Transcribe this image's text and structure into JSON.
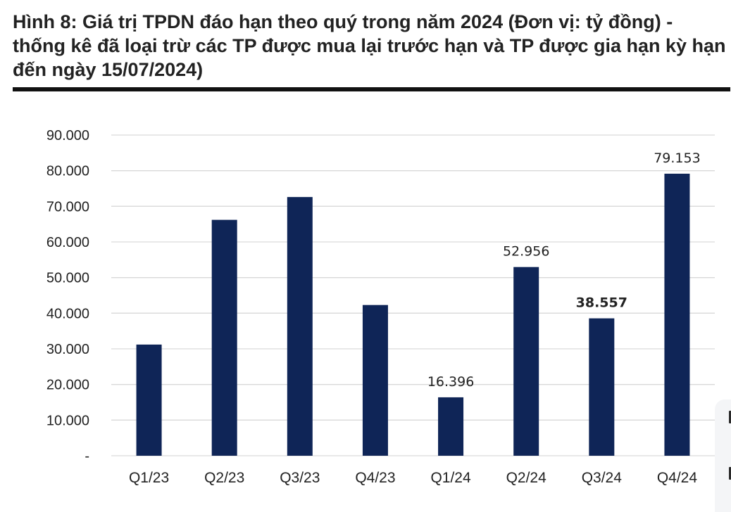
{
  "title": "Hình 8: Giá trị TPDN đáo hạn theo quý trong năm 2024 (Đơn vị: tỷ đồng) - thống kê đã loại trừ các TP được mua lại trước hạn và TP được gia hạn kỳ hạn đến ngày 15/07/2024)",
  "colors": {
    "bar": "#0f2557",
    "grid": "#d9d9d9",
    "axis_text": "#222222"
  },
  "chart_data": {
    "type": "bar",
    "title": "",
    "xlabel": "",
    "ylabel": "",
    "ylim": [
      0,
      90000
    ],
    "ytick_values": [
      0,
      10000,
      20000,
      30000,
      40000,
      50000,
      60000,
      70000,
      80000,
      90000
    ],
    "yticks": [
      "-",
      "10.000",
      "20.000",
      "30.000",
      "40.000",
      "50.000",
      "60.000",
      "70.000",
      "80.000",
      "90.000"
    ],
    "grid": true,
    "categories": [
      "Q1/23",
      "Q2/23",
      "Q3/23",
      "Q4/23",
      "Q1/24",
      "Q2/24",
      "Q3/24",
      "Q4/24"
    ],
    "values": [
      31200,
      66200,
      72600,
      42300,
      16396,
      52956,
      38557,
      79153
    ],
    "data_labels": [
      {
        "index": 4,
        "text": "16.396",
        "bold": false
      },
      {
        "index": 5,
        "text": "52.956",
        "bold": false
      },
      {
        "index": 6,
        "text": "38.557",
        "bold": true
      },
      {
        "index": 7,
        "text": "79.153",
        "bold": false
      }
    ]
  }
}
